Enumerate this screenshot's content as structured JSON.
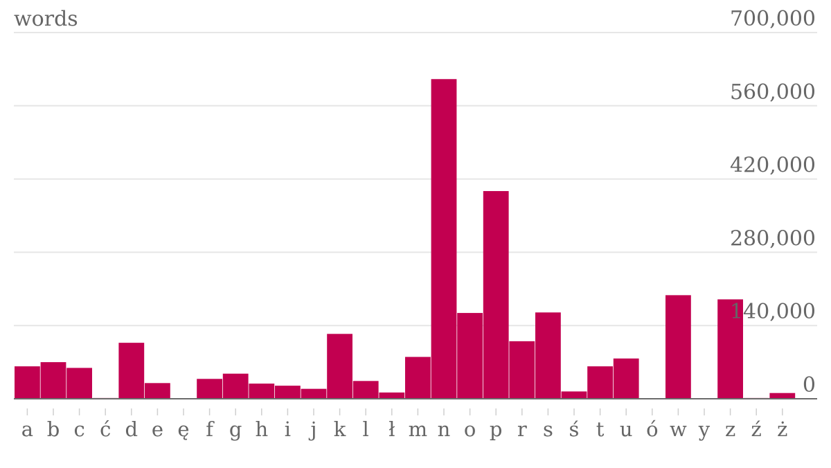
{
  "chart_data": {
    "type": "bar",
    "ylabel": "words",
    "xlabel": "",
    "ylim": [
      0,
      700000
    ],
    "yticks": [
      0,
      140000,
      280000,
      420000,
      560000,
      700000
    ],
    "ytick_labels": [
      "0",
      "140,000",
      "280,000",
      "420,000",
      "560,000",
      "700,000"
    ],
    "grid": true,
    "color": "#c20050",
    "categories": [
      "a",
      "b",
      "c",
      "ć",
      "d",
      "e",
      "ę",
      "f",
      "g",
      "h",
      "i",
      "j",
      "k",
      "l",
      "ł",
      "m",
      "n",
      "o",
      "p",
      "r",
      "s",
      "ś",
      "t",
      "u",
      "ó",
      "w",
      "y",
      "z",
      "ź",
      "ż"
    ],
    "values": [
      62000,
      70000,
      59000,
      1500,
      107000,
      30000,
      0,
      38000,
      48000,
      29000,
      25000,
      19000,
      124000,
      34000,
      12000,
      80000,
      611000,
      164000,
      397000,
      110000,
      165000,
      14000,
      62000,
      77000,
      0,
      198000,
      0,
      190000,
      1500,
      11000
    ]
  }
}
